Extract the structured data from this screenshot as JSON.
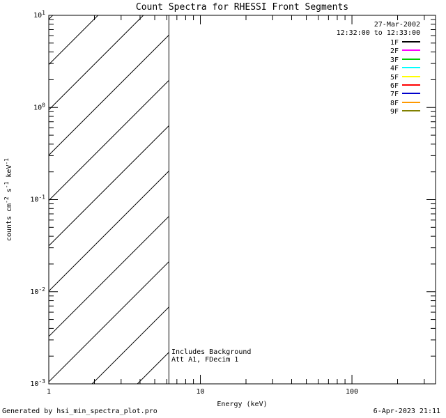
{
  "footer": {
    "left": "Generated by hsi_min_spectra_plot.pro",
    "right": "6-Apr-2023 21:11"
  },
  "chart_data": {
    "type": "line",
    "title": "Count Spectra for RHESSI Front Segments",
    "xlabel": "Energy (keV)",
    "ylabel": "counts cm^-2 s^-1 keV^-1",
    "x_scale": "log",
    "y_scale": "log",
    "xlim": [
      1,
      356
    ],
    "ylim": [
      0.001,
      10
    ],
    "grid": false,
    "x_major_ticks": [
      1,
      10,
      100
    ],
    "x_tick_labels": [
      "1",
      "10",
      "100"
    ],
    "y_major_ticks": [
      0.001,
      0.01,
      0.1,
      1,
      10
    ],
    "y_tick_labels": [
      "10^-3",
      "10^-2",
      "10^-1",
      "10^0",
      "10^1"
    ],
    "hatched_region": {
      "x_min_keV": 1,
      "x_max_keV": 6.2
    },
    "annotations": [
      "Includes Background",
      "Att A1, FDecim 1"
    ],
    "legend": {
      "position": "top-right",
      "date": "27-Mar-2002",
      "time_range": "12:32:00 to 12:33:00",
      "entries": [
        {
          "label": "1F",
          "color": "#000000"
        },
        {
          "label": "2F",
          "color": "#ff00ff"
        },
        {
          "label": "3F",
          "color": "#00cc00"
        },
        {
          "label": "4F",
          "color": "#00ffff"
        },
        {
          "label": "5F",
          "color": "#ffff00"
        },
        {
          "label": "6F",
          "color": "#ff0000"
        },
        {
          "label": "7F",
          "color": "#0000cc"
        },
        {
          "label": "8F",
          "color": "#ff9900"
        },
        {
          "label": "9F",
          "color": "#808000"
        }
      ]
    },
    "series": []
  }
}
